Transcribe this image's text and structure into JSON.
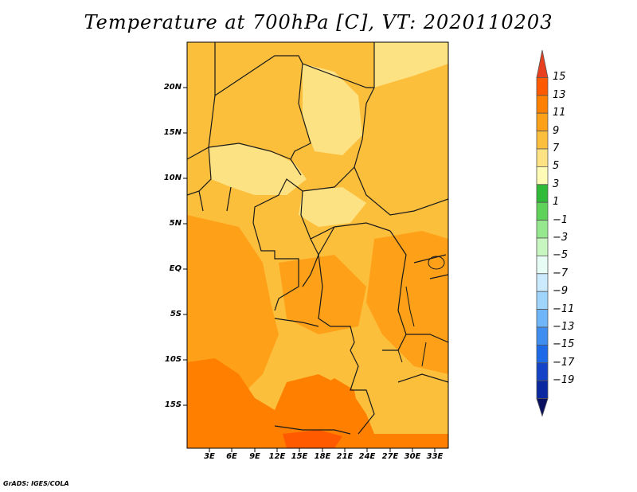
{
  "title": "Temperature at 700hPa [C], VT: 2020110203",
  "credit": "GrADS: IGES/COLA",
  "latitude_labels": [
    "20N",
    "15N",
    "10N",
    "5N",
    "EQ",
    "5S",
    "10S",
    "15S"
  ],
  "longitude_labels": [
    "3E",
    "6E",
    "9E",
    "12E",
    "15E",
    "18E",
    "21E",
    "24E",
    "27E",
    "30E",
    "33E"
  ],
  "colorbar": {
    "labels": [
      "15",
      "13",
      "11",
      "9",
      "7",
      "5",
      "3",
      "1",
      "−1",
      "−3",
      "−5",
      "−7",
      "−9",
      "−11",
      "−13",
      "−15",
      "−17",
      "−19"
    ],
    "colors": [
      "#e8401e",
      "#ff5a00",
      "#ff7f00",
      "#fea018",
      "#fcbf3c",
      "#fde283",
      "#fefbb6",
      "#2fba38",
      "#5fd25a",
      "#96e88e",
      "#c8f6c0",
      "#e6fcf4",
      "#cbeafd",
      "#9fd4fd",
      "#6eb5f9",
      "#3d8ef0",
      "#1d6ae8",
      "#1443c8",
      "#0a28a0",
      "#0a1060"
    ]
  }
}
